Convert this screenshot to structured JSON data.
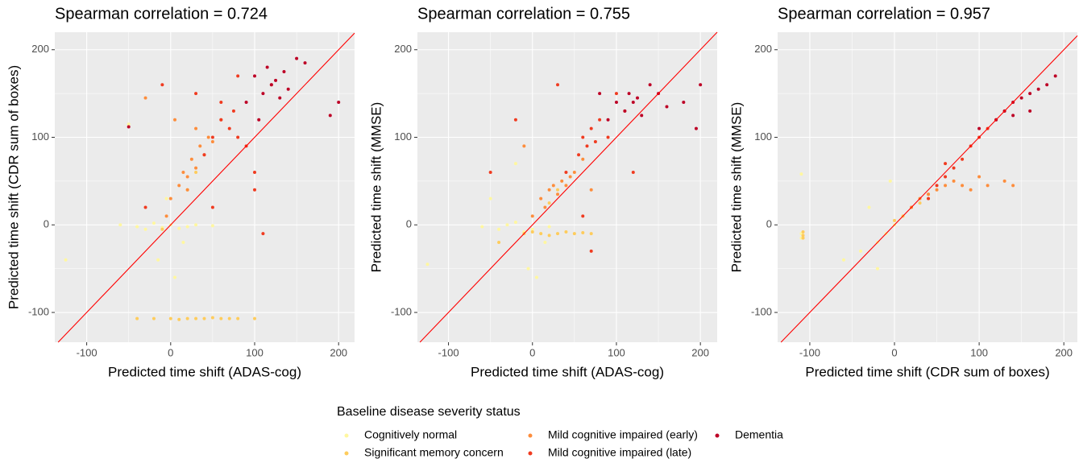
{
  "chart_data": [
    {
      "type": "scatter",
      "title": "Spearman correlation = 0.724",
      "x_label": "Predicted time shift (ADAS-cog)",
      "y_label": "Predicted time shift (CDR sum of boxes)",
      "legend_title": "Baseline disease severity status",
      "xlim": [
        -138,
        219
      ],
      "ylim": [
        -134,
        220
      ],
      "xticks": [
        -100,
        0,
        100,
        200
      ],
      "yticks": [
        -100,
        0,
        100,
        200
      ],
      "grid": true,
      "series": [
        {
          "name": "Cognitively normal",
          "color": "#fff7a0",
          "x": [
            -60,
            -40,
            -30,
            -20,
            -10,
            0,
            10,
            20,
            30,
            50,
            -50,
            -15,
            5,
            -125,
            -5,
            15
          ],
          "values": [
            0,
            -2,
            -5,
            2,
            -3,
            0,
            -4,
            -2,
            0,
            -1,
            115,
            -40,
            -60,
            -40,
            30,
            -20
          ]
        },
        {
          "name": "Significant memory concern",
          "color": "#fecc5c",
          "x": [
            -40,
            -20,
            0,
            10,
            20,
            30,
            40,
            50,
            60,
            70,
            80,
            100,
            20,
            30,
            -10
          ],
          "values": [
            -107,
            -107,
            -107,
            -108,
            -107,
            -107,
            -107,
            -106,
            -107,
            -107,
            -107,
            -107,
            40,
            60,
            -5
          ]
        },
        {
          "name": "Mild cognitive impaired (early)",
          "color": "#fd8d3c",
          "x": [
            0,
            10,
            15,
            20,
            25,
            30,
            35,
            40,
            45,
            50,
            20,
            -5,
            60,
            -30,
            5,
            30
          ],
          "values": [
            30,
            45,
            60,
            55,
            75,
            65,
            90,
            80,
            100,
            95,
            40,
            10,
            120,
            145,
            120,
            110
          ]
        },
        {
          "name": "Mild cognitive impaired (late)",
          "color": "#f03b20",
          "x": [
            40,
            50,
            60,
            70,
            75,
            80,
            90,
            100,
            60,
            30,
            100,
            120,
            80,
            -10,
            50,
            110,
            -30
          ],
          "values": [
            80,
            100,
            120,
            110,
            130,
            100,
            90,
            60,
            140,
            150,
            40,
            160,
            170,
            160,
            20,
            -10,
            20
          ]
        },
        {
          "name": "Dementia",
          "color": "#bd0026",
          "x": [
            90,
            100,
            110,
            115,
            120,
            125,
            130,
            140,
            150,
            135,
            105,
            160,
            200,
            190,
            -50
          ],
          "values": [
            140,
            170,
            150,
            180,
            160,
            165,
            145,
            155,
            190,
            175,
            120,
            185,
            140,
            125,
            112
          ]
        }
      ]
    },
    {
      "type": "scatter",
      "title": "Spearman correlation = 0.755",
      "x_label": "Predicted time shift (ADAS-cog)",
      "y_label": "Predicted time shift (MMSE)",
      "xlim": [
        -137,
        220
      ],
      "ylim": [
        -134,
        220
      ],
      "xticks": [
        -100,
        0,
        100,
        200
      ],
      "yticks": [
        -100,
        0,
        100,
        200
      ],
      "grid": true,
      "series": [
        {
          "color": "#fff7a0",
          "x": [
            -60,
            -40,
            -30,
            -20,
            -10,
            0,
            10,
            20,
            -50,
            -125,
            -5,
            5,
            -20,
            15
          ],
          "values": [
            -2,
            -5,
            0,
            3,
            -8,
            -5,
            -10,
            -2,
            30,
            -45,
            -50,
            -60,
            70,
            -20
          ]
        },
        {
          "color": "#fecc5c",
          "x": [
            -10,
            0,
            10,
            20,
            30,
            40,
            50,
            60,
            70,
            -40,
            20,
            30
          ],
          "values": [
            -10,
            -8,
            -10,
            -12,
            -10,
            -8,
            -10,
            -9,
            -10,
            -20,
            25,
            40
          ]
        },
        {
          "color": "#fd8d3c",
          "x": [
            10,
            20,
            25,
            30,
            35,
            40,
            45,
            50,
            60,
            15,
            0,
            -10,
            70
          ],
          "values": [
            30,
            40,
            45,
            35,
            50,
            45,
            55,
            60,
            75,
            20,
            10,
            90,
            40
          ]
        },
        {
          "color": "#f03b20",
          "x": [
            40,
            55,
            60,
            65,
            70,
            75,
            80,
            90,
            100,
            110,
            30,
            -20,
            60,
            120,
            -50,
            70
          ],
          "values": [
            60,
            80,
            100,
            90,
            110,
            95,
            120,
            100,
            150,
            130,
            160,
            120,
            10,
            60,
            60,
            -30
          ]
        },
        {
          "color": "#bd0026",
          "x": [
            90,
            100,
            110,
            115,
            120,
            125,
            130,
            140,
            150,
            160,
            180,
            200,
            80,
            195
          ],
          "values": [
            120,
            140,
            130,
            150,
            140,
            145,
            125,
            160,
            150,
            135,
            140,
            160,
            150,
            110
          ]
        }
      ]
    },
    {
      "type": "scatter",
      "title": "Spearman correlation = 0.957",
      "x_label": "Predicted time shift (CDR sum of boxes)",
      "y_label": "Predicted time shift (MMSE)",
      "xlim": [
        -138,
        216
      ],
      "ylim": [
        -134,
        220
      ],
      "xticks": [
        -100,
        0,
        100,
        200
      ],
      "yticks": [
        -100,
        0,
        100,
        200
      ],
      "grid": true,
      "series": [
        {
          "color": "#fff7a0",
          "x": [
            -110,
            -110,
            -60,
            -40,
            -20,
            -10,
            0,
            10,
            -30,
            -5,
            -110,
            -20
          ],
          "values": [
            -10,
            -15,
            -40,
            -30,
            -20,
            -10,
            0,
            10,
            20,
            50,
            58,
            -50
          ]
        },
        {
          "color": "#fecc5c",
          "x": [
            -108,
            -108,
            -108,
            10,
            20,
            30,
            40,
            0
          ],
          "values": [
            -8,
            -12,
            -15,
            10,
            20,
            25,
            35,
            5
          ]
        },
        {
          "color": "#fd8d3c",
          "x": [
            20,
            30,
            40,
            50,
            60,
            70,
            80,
            90,
            100,
            110,
            130,
            140
          ],
          "values": [
            20,
            30,
            35,
            40,
            45,
            50,
            45,
            40,
            55,
            45,
            50,
            45
          ]
        },
        {
          "color": "#f03b20",
          "x": [
            40,
            50,
            60,
            70,
            80,
            90,
            100,
            110,
            120,
            130,
            60
          ],
          "values": [
            30,
            45,
            55,
            65,
            75,
            90,
            100,
            110,
            120,
            130,
            70
          ]
        },
        {
          "color": "#bd0026",
          "x": [
            100,
            120,
            130,
            140,
            150,
            160,
            170,
            180,
            190,
            140,
            160
          ],
          "values": [
            110,
            120,
            130,
            140,
            145,
            150,
            155,
            160,
            170,
            125,
            130
          ]
        }
      ]
    }
  ]
}
